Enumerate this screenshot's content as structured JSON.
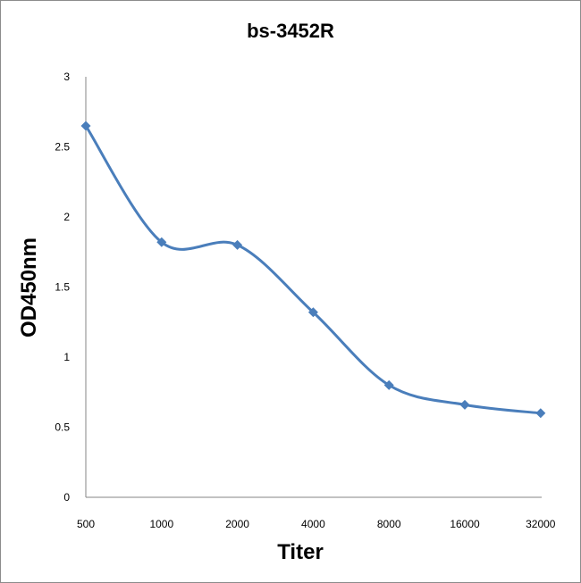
{
  "chart_data": {
    "type": "line",
    "title": "bs-3452R",
    "xlabel": "Titer",
    "ylabel": "OD450nm",
    "categories": [
      "500",
      "1000",
      "2000",
      "4000",
      "8000",
      "16000",
      "32000"
    ],
    "series": [
      {
        "values": [
          2.65,
          1.82,
          1.8,
          1.32,
          0.8,
          0.66,
          0.6
        ],
        "color": "#4a7ebb",
        "marker": "diamond",
        "smooth": true
      }
    ],
    "ylim": [
      0,
      3
    ],
    "yticks": [
      "0",
      "0.5",
      "1",
      "1.5",
      "2",
      "2.5",
      "3"
    ],
    "grid": false,
    "legend": "none"
  }
}
